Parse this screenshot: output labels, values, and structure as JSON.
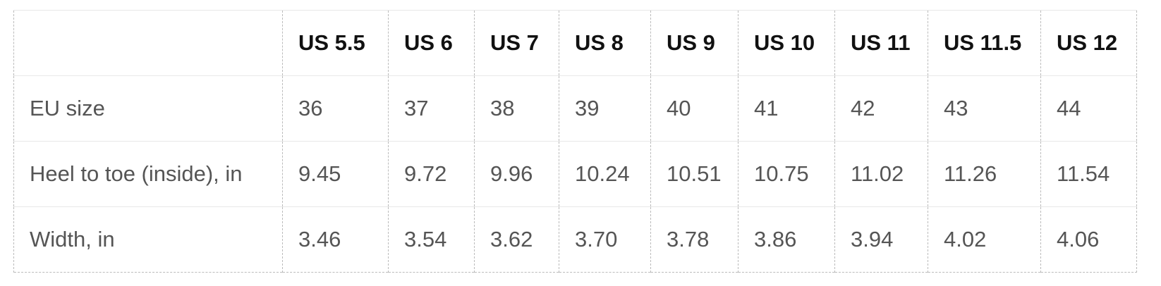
{
  "table": {
    "columns": [
      "US 5.5",
      "US 6",
      "US 7",
      "US 8",
      "US 9",
      "US 10",
      "US 11",
      "US 11.5",
      "US 12"
    ],
    "rows": [
      {
        "label": "EU size",
        "cells": [
          "36",
          "37",
          "38",
          "39",
          "40",
          "41",
          "42",
          "43",
          "44"
        ]
      },
      {
        "label": "Heel to toe (inside), in",
        "cells": [
          "9.45",
          "9.72",
          "9.96",
          "10.24",
          "10.51",
          "10.75",
          "11.02",
          "11.26",
          "11.54"
        ]
      },
      {
        "label": "Width, in",
        "cells": [
          "3.46",
          "3.54",
          "3.62",
          "3.70",
          "3.78",
          "3.86",
          "3.94",
          "4.02",
          "4.06"
        ]
      }
    ]
  }
}
